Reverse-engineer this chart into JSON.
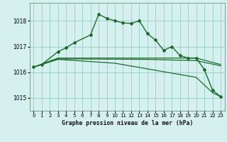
{
  "title": "Graphe pression niveau de la mer (hPa)",
  "background_color": "#d6f0f0",
  "grid_color": "#88ccbb",
  "line_color": "#1a6b2a",
  "xlim": [
    -0.5,
    23.5
  ],
  "ylim": [
    1014.5,
    1018.7
  ],
  "yticks": [
    1015,
    1016,
    1017,
    1018
  ],
  "xticks": [
    0,
    1,
    2,
    3,
    4,
    5,
    6,
    7,
    8,
    9,
    10,
    11,
    12,
    13,
    14,
    15,
    16,
    17,
    18,
    19,
    20,
    21,
    22,
    23
  ],
  "series": [
    {
      "x": [
        0,
        1,
        3,
        4,
        5,
        7,
        8,
        9,
        10,
        11,
        12,
        13,
        14,
        15,
        16,
        17,
        18,
        19,
        20,
        21,
        22,
        23
      ],
      "y": [
        1016.2,
        1016.3,
        1016.8,
        1016.95,
        1017.15,
        1017.45,
        1018.25,
        1018.1,
        1018.0,
        1017.92,
        1017.9,
        1018.0,
        1017.5,
        1017.25,
        1016.85,
        1017.0,
        1016.65,
        1016.55,
        1016.55,
        1016.1,
        1015.3,
        1015.05
      ],
      "marker": "D",
      "marker_size": 2.0,
      "linewidth": 1.0,
      "zorder": 5
    },
    {
      "x": [
        0,
        3,
        10,
        20,
        23
      ],
      "y": [
        1016.2,
        1016.55,
        1016.55,
        1016.55,
        1016.3
      ],
      "marker": null,
      "linewidth": 0.9,
      "zorder": 3
    },
    {
      "x": [
        0,
        3,
        14,
        20,
        23
      ],
      "y": [
        1016.2,
        1016.52,
        1016.5,
        1016.45,
        1016.25
      ],
      "marker": null,
      "linewidth": 0.9,
      "zorder": 3
    },
    {
      "x": [
        0,
        3,
        10,
        20,
        22,
        23
      ],
      "y": [
        1016.2,
        1016.5,
        1016.35,
        1015.8,
        1015.2,
        1015.05
      ],
      "marker": null,
      "linewidth": 0.9,
      "zorder": 3
    }
  ]
}
